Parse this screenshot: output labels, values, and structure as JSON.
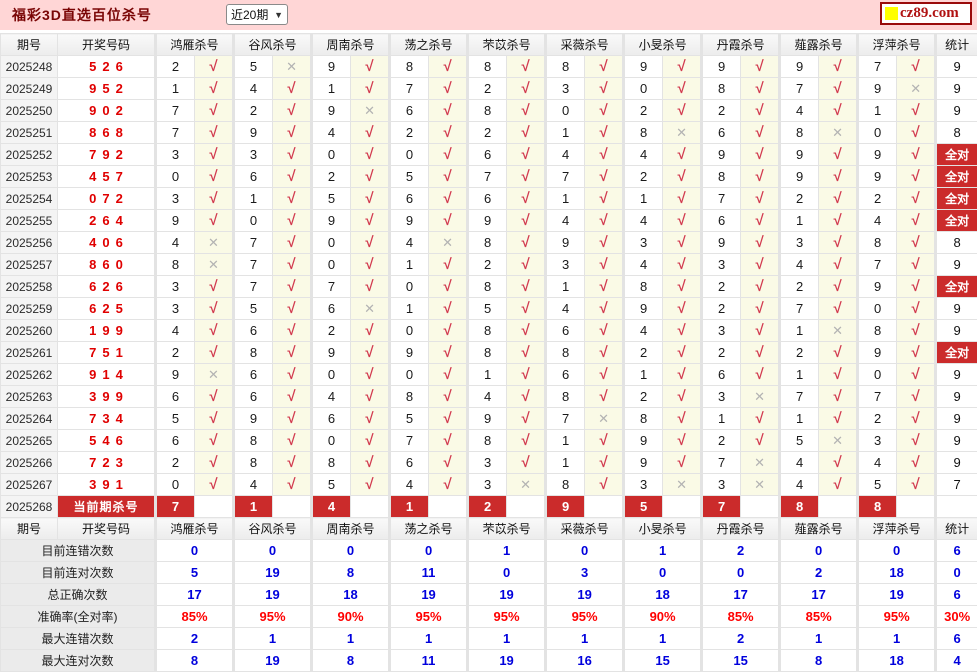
{
  "header": {
    "title": "福彩3D直选百位杀号",
    "range_selected": "近20期",
    "logo_text": "cz89.com"
  },
  "columns": {
    "period": "期号",
    "draw": "开奖号码",
    "experts": [
      "鸿雁杀号",
      "谷风杀号",
      "周南杀号",
      "荡之杀号",
      "芣苡杀号",
      "采薇杀号",
      "小旻杀号",
      "丹霞杀号",
      "薤露杀号",
      "浮萍杀号"
    ],
    "stat": "统计"
  },
  "labels": {
    "all_correct": "全对"
  },
  "icons": {
    "check": "√",
    "cross": "✕",
    "dropdown": "▼"
  },
  "colors": {
    "topbar_pink": "#ffd6d6",
    "accent_red": "#cb2b2b",
    "check_red": "#d23b50",
    "cross_gray": "#b3b3b3",
    "draw_red": "#e00000",
    "value_blue": "#0000dd",
    "value_red": "#ff0000",
    "logo_yellow": "#ffff00"
  },
  "rows": [
    {
      "period": "2025248",
      "draw": "526",
      "cells": [
        [
          "2",
          "check"
        ],
        [
          "5",
          "cross"
        ],
        [
          "9",
          "check"
        ],
        [
          "8",
          "check"
        ],
        [
          "8",
          "check"
        ],
        [
          "8",
          "check"
        ],
        [
          "9",
          "check"
        ],
        [
          "9",
          "check"
        ],
        [
          "9",
          "check"
        ],
        [
          "7",
          "check"
        ]
      ],
      "stat": "9"
    },
    {
      "period": "2025249",
      "draw": "952",
      "cells": [
        [
          "1",
          "check"
        ],
        [
          "4",
          "check"
        ],
        [
          "1",
          "check"
        ],
        [
          "7",
          "check"
        ],
        [
          "2",
          "check"
        ],
        [
          "3",
          "check"
        ],
        [
          "0",
          "check"
        ],
        [
          "8",
          "check"
        ],
        [
          "7",
          "check"
        ],
        [
          "9",
          "cross"
        ]
      ],
      "stat": "9"
    },
    {
      "period": "2025250",
      "draw": "902",
      "cells": [
        [
          "7",
          "check"
        ],
        [
          "2",
          "check"
        ],
        [
          "9",
          "cross"
        ],
        [
          "6",
          "check"
        ],
        [
          "8",
          "check"
        ],
        [
          "0",
          "check"
        ],
        [
          "2",
          "check"
        ],
        [
          "2",
          "check"
        ],
        [
          "4",
          "check"
        ],
        [
          "1",
          "check"
        ]
      ],
      "stat": "9"
    },
    {
      "period": "2025251",
      "draw": "868",
      "cells": [
        [
          "7",
          "check"
        ],
        [
          "9",
          "check"
        ],
        [
          "4",
          "check"
        ],
        [
          "2",
          "check"
        ],
        [
          "2",
          "check"
        ],
        [
          "1",
          "check"
        ],
        [
          "8",
          "cross"
        ],
        [
          "6",
          "check"
        ],
        [
          "8",
          "cross"
        ],
        [
          "0",
          "check"
        ]
      ],
      "stat": "8"
    },
    {
      "period": "2025252",
      "draw": "792",
      "cells": [
        [
          "3",
          "check"
        ],
        [
          "3",
          "check"
        ],
        [
          "0",
          "check"
        ],
        [
          "0",
          "check"
        ],
        [
          "6",
          "check"
        ],
        [
          "4",
          "check"
        ],
        [
          "4",
          "check"
        ],
        [
          "9",
          "check"
        ],
        [
          "9",
          "check"
        ],
        [
          "9",
          "check"
        ]
      ],
      "stat": "全对"
    },
    {
      "period": "2025253",
      "draw": "457",
      "cells": [
        [
          "0",
          "check"
        ],
        [
          "6",
          "check"
        ],
        [
          "2",
          "check"
        ],
        [
          "5",
          "check"
        ],
        [
          "7",
          "check"
        ],
        [
          "7",
          "check"
        ],
        [
          "2",
          "check"
        ],
        [
          "8",
          "check"
        ],
        [
          "9",
          "check"
        ],
        [
          "9",
          "check"
        ]
      ],
      "stat": "全对"
    },
    {
      "period": "2025254",
      "draw": "072",
      "cells": [
        [
          "3",
          "check"
        ],
        [
          "1",
          "check"
        ],
        [
          "5",
          "check"
        ],
        [
          "6",
          "check"
        ],
        [
          "6",
          "check"
        ],
        [
          "1",
          "check"
        ],
        [
          "1",
          "check"
        ],
        [
          "7",
          "check"
        ],
        [
          "2",
          "check"
        ],
        [
          "2",
          "check"
        ]
      ],
      "stat": "全对"
    },
    {
      "period": "2025255",
      "draw": "264",
      "cells": [
        [
          "9",
          "check"
        ],
        [
          "0",
          "check"
        ],
        [
          "9",
          "check"
        ],
        [
          "9",
          "check"
        ],
        [
          "9",
          "check"
        ],
        [
          "4",
          "check"
        ],
        [
          "4",
          "check"
        ],
        [
          "6",
          "check"
        ],
        [
          "1",
          "check"
        ],
        [
          "4",
          "check"
        ]
      ],
      "stat": "全对"
    },
    {
      "period": "2025256",
      "draw": "406",
      "cells": [
        [
          "4",
          "cross"
        ],
        [
          "7",
          "check"
        ],
        [
          "0",
          "check"
        ],
        [
          "4",
          "cross"
        ],
        [
          "8",
          "check"
        ],
        [
          "9",
          "check"
        ],
        [
          "3",
          "check"
        ],
        [
          "9",
          "check"
        ],
        [
          "3",
          "check"
        ],
        [
          "8",
          "check"
        ]
      ],
      "stat": "8"
    },
    {
      "period": "2025257",
      "draw": "860",
      "cells": [
        [
          "8",
          "cross"
        ],
        [
          "7",
          "check"
        ],
        [
          "0",
          "check"
        ],
        [
          "1",
          "check"
        ],
        [
          "2",
          "check"
        ],
        [
          "3",
          "check"
        ],
        [
          "4",
          "check"
        ],
        [
          "3",
          "check"
        ],
        [
          "4",
          "check"
        ],
        [
          "7",
          "check"
        ]
      ],
      "stat": "9"
    },
    {
      "period": "2025258",
      "draw": "626",
      "cells": [
        [
          "3",
          "check"
        ],
        [
          "7",
          "check"
        ],
        [
          "7",
          "check"
        ],
        [
          "0",
          "check"
        ],
        [
          "8",
          "check"
        ],
        [
          "1",
          "check"
        ],
        [
          "8",
          "check"
        ],
        [
          "2",
          "check"
        ],
        [
          "2",
          "check"
        ],
        [
          "9",
          "check"
        ]
      ],
      "stat": "全对"
    },
    {
      "period": "2025259",
      "draw": "625",
      "cells": [
        [
          "3",
          "check"
        ],
        [
          "5",
          "check"
        ],
        [
          "6",
          "cross"
        ],
        [
          "1",
          "check"
        ],
        [
          "5",
          "check"
        ],
        [
          "4",
          "check"
        ],
        [
          "9",
          "check"
        ],
        [
          "2",
          "check"
        ],
        [
          "7",
          "check"
        ],
        [
          "0",
          "check"
        ]
      ],
      "stat": "9"
    },
    {
      "period": "2025260",
      "draw": "199",
      "cells": [
        [
          "4",
          "check"
        ],
        [
          "6",
          "check"
        ],
        [
          "2",
          "check"
        ],
        [
          "0",
          "check"
        ],
        [
          "8",
          "check"
        ],
        [
          "6",
          "check"
        ],
        [
          "4",
          "check"
        ],
        [
          "3",
          "check"
        ],
        [
          "1",
          "cross"
        ],
        [
          "8",
          "check"
        ]
      ],
      "stat": "9"
    },
    {
      "period": "2025261",
      "draw": "751",
      "cells": [
        [
          "2",
          "check"
        ],
        [
          "8",
          "check"
        ],
        [
          "9",
          "check"
        ],
        [
          "9",
          "check"
        ],
        [
          "8",
          "check"
        ],
        [
          "8",
          "check"
        ],
        [
          "2",
          "check"
        ],
        [
          "2",
          "check"
        ],
        [
          "2",
          "check"
        ],
        [
          "9",
          "check"
        ]
      ],
      "stat": "全对"
    },
    {
      "period": "2025262",
      "draw": "914",
      "cells": [
        [
          "9",
          "cross"
        ],
        [
          "6",
          "check"
        ],
        [
          "0",
          "check"
        ],
        [
          "0",
          "check"
        ],
        [
          "1",
          "check"
        ],
        [
          "6",
          "check"
        ],
        [
          "1",
          "check"
        ],
        [
          "6",
          "check"
        ],
        [
          "1",
          "check"
        ],
        [
          "0",
          "check"
        ]
      ],
      "stat": "9"
    },
    {
      "period": "2025263",
      "draw": "399",
      "cells": [
        [
          "6",
          "check"
        ],
        [
          "6",
          "check"
        ],
        [
          "4",
          "check"
        ],
        [
          "8",
          "check"
        ],
        [
          "4",
          "check"
        ],
        [
          "8",
          "check"
        ],
        [
          "2",
          "check"
        ],
        [
          "3",
          "cross"
        ],
        [
          "7",
          "check"
        ],
        [
          "7",
          "check"
        ]
      ],
      "stat": "9"
    },
    {
      "period": "2025264",
      "draw": "734",
      "cells": [
        [
          "5",
          "check"
        ],
        [
          "9",
          "check"
        ],
        [
          "6",
          "check"
        ],
        [
          "5",
          "check"
        ],
        [
          "9",
          "check"
        ],
        [
          "7",
          "cross"
        ],
        [
          "8",
          "check"
        ],
        [
          "1",
          "check"
        ],
        [
          "1",
          "check"
        ],
        [
          "2",
          "check"
        ]
      ],
      "stat": "9"
    },
    {
      "period": "2025265",
      "draw": "546",
      "cells": [
        [
          "6",
          "check"
        ],
        [
          "8",
          "check"
        ],
        [
          "0",
          "check"
        ],
        [
          "7",
          "check"
        ],
        [
          "8",
          "check"
        ],
        [
          "1",
          "check"
        ],
        [
          "9",
          "check"
        ],
        [
          "2",
          "check"
        ],
        [
          "5",
          "cross"
        ],
        [
          "3",
          "check"
        ]
      ],
      "stat": "9"
    },
    {
      "period": "2025266",
      "draw": "723",
      "cells": [
        [
          "2",
          "check"
        ],
        [
          "8",
          "check"
        ],
        [
          "8",
          "check"
        ],
        [
          "6",
          "check"
        ],
        [
          "3",
          "check"
        ],
        [
          "1",
          "check"
        ],
        [
          "9",
          "check"
        ],
        [
          "7",
          "cross"
        ],
        [
          "4",
          "check"
        ],
        [
          "4",
          "check"
        ]
      ],
      "stat": "9"
    },
    {
      "period": "2025267",
      "draw": "391",
      "cells": [
        [
          "0",
          "check"
        ],
        [
          "4",
          "check"
        ],
        [
          "5",
          "check"
        ],
        [
          "4",
          "check"
        ],
        [
          "3",
          "cross"
        ],
        [
          "8",
          "check"
        ],
        [
          "3",
          "cross"
        ],
        [
          "3",
          "cross"
        ],
        [
          "4",
          "check"
        ],
        [
          "5",
          "check"
        ]
      ],
      "stat": "7"
    }
  ],
  "current_row": {
    "period": "2025268",
    "label": "当前期杀号",
    "kills": [
      "7",
      "1",
      "4",
      "1",
      "2",
      "9",
      "5",
      "7",
      "8",
      "8"
    ],
    "stat": ""
  },
  "stats_rows": [
    {
      "label": "目前连错次数",
      "color": "blue",
      "values": [
        "0",
        "0",
        "0",
        "0",
        "1",
        "0",
        "1",
        "2",
        "0",
        "0"
      ],
      "total": "6"
    },
    {
      "label": "目前连对次数",
      "color": "blue",
      "values": [
        "5",
        "19",
        "8",
        "11",
        "0",
        "3",
        "0",
        "0",
        "2",
        "18"
      ],
      "total": "0"
    },
    {
      "label": "总正确次数",
      "color": "blue",
      "values": [
        "17",
        "19",
        "18",
        "19",
        "19",
        "19",
        "18",
        "17",
        "17",
        "19"
      ],
      "total": "6"
    },
    {
      "label": "准确率(全对率)",
      "color": "red",
      "values": [
        "85%",
        "95%",
        "90%",
        "95%",
        "95%",
        "95%",
        "90%",
        "85%",
        "85%",
        "95%"
      ],
      "total": "30%"
    },
    {
      "label": "最大连错次数",
      "color": "blue",
      "values": [
        "2",
        "1",
        "1",
        "1",
        "1",
        "1",
        "1",
        "2",
        "1",
        "1"
      ],
      "total": "6"
    },
    {
      "label": "最大连对次数",
      "color": "blue",
      "values": [
        "8",
        "19",
        "8",
        "11",
        "19",
        "16",
        "15",
        "15",
        "8",
        "18"
      ],
      "total": "4"
    }
  ]
}
